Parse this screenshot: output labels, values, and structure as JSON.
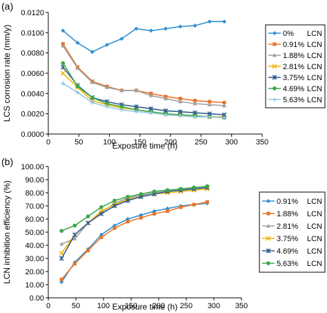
{
  "chart_data": [
    {
      "type": "line",
      "panel_label": "(a)",
      "xlabel": "Exposure time (h)",
      "ylabel": "LCS corrosion rate (mm/y)",
      "xlim": [
        0,
        350
      ],
      "ylim": [
        0,
        0.012
      ],
      "x_ticks": [
        "0",
        "50",
        "100",
        "150",
        "200",
        "250",
        "300",
        "350"
      ],
      "y_ticks": [
        "0.0000",
        "0.0020",
        "0.0040",
        "0.0060",
        "0.0080",
        "0.0100",
        "0.0120"
      ],
      "grid": false,
      "legend_position": "right",
      "series": [
        {
          "name": "0%",
          "suffix": "LCN",
          "color": "#2E8FD0",
          "marker": "diamond",
          "x": [
            24,
            48,
            72,
            96,
            120,
            144,
            168,
            192,
            216,
            240,
            264,
            288
          ],
          "values": [
            0.0102,
            0.009,
            0.0081,
            0.0088,
            0.0094,
            0.0104,
            0.0102,
            0.0104,
            0.0106,
            0.0107,
            0.0111,
            0.0111
          ]
        },
        {
          "name": "0.91%",
          "suffix": "LCN",
          "color": "#E8752A",
          "marker": "square",
          "x": [
            24,
            48,
            72,
            96,
            120,
            144,
            168,
            192,
            216,
            240,
            264,
            288
          ],
          "values": [
            0.0089,
            0.0066,
            0.0052,
            0.0047,
            0.0043,
            0.0043,
            0.004,
            0.0037,
            0.0035,
            0.0033,
            0.0032,
            0.0031
          ]
        },
        {
          "name": "1.88%",
          "suffix": "LCN",
          "color": "#A0A0A0",
          "marker": "triangle",
          "x": [
            24,
            48,
            72,
            96,
            120,
            144,
            168,
            192,
            216,
            240,
            264,
            288
          ],
          "values": [
            0.0087,
            0.0065,
            0.0051,
            0.0046,
            0.0043,
            0.0043,
            0.0038,
            0.0035,
            0.0032,
            0.003,
            0.0029,
            0.0028
          ]
        },
        {
          "name": "2.81%",
          "suffix": "LCN",
          "color": "#F4B400",
          "marker": "x",
          "x": [
            24,
            48,
            72,
            96,
            120,
            144,
            168,
            192,
            216,
            240,
            264,
            288
          ],
          "values": [
            0.006,
            0.0046,
            0.0033,
            0.0029,
            0.0026,
            0.0024,
            0.0022,
            0.002,
            0.0019,
            0.0018,
            0.0017,
            0.0017
          ]
        },
        {
          "name": "3.75%",
          "suffix": "LCN",
          "color": "#2F5C8F",
          "marker": "star",
          "x": [
            24,
            48,
            72,
            96,
            120,
            144,
            168,
            192,
            216,
            240,
            264,
            288
          ],
          "values": [
            0.0066,
            0.0048,
            0.0036,
            0.0032,
            0.0029,
            0.0027,
            0.0025,
            0.0023,
            0.0022,
            0.0021,
            0.002,
            0.0019
          ]
        },
        {
          "name": "4.69%",
          "suffix": "LCN",
          "color": "#3EA84A",
          "marker": "circle",
          "x": [
            24,
            48,
            72,
            96,
            120,
            144,
            168,
            192,
            216,
            240,
            264,
            288
          ],
          "values": [
            0.007,
            0.0047,
            0.0036,
            0.003,
            0.0027,
            0.0024,
            0.0022,
            0.002,
            0.0019,
            0.0018,
            0.0017,
            0.0016
          ]
        },
        {
          "name": "5.63%",
          "suffix": "LCN",
          "color": "#8FC9E8",
          "marker": "plus",
          "x": [
            24,
            48,
            72,
            96,
            120,
            144,
            168,
            192,
            216,
            240,
            264,
            288
          ],
          "values": [
            0.005,
            0.0041,
            0.0031,
            0.0027,
            0.0024,
            0.0022,
            0.0021,
            0.0019,
            0.0018,
            0.0017,
            0.0017,
            0.0016
          ]
        }
      ]
    },
    {
      "type": "line",
      "panel_label": "(b)",
      "xlabel": "Exposure time (h)",
      "ylabel": "LCN inhibition efficiency (%)",
      "xlim": [
        0,
        350
      ],
      "ylim": [
        0,
        100
      ],
      "x_ticks": [
        "0",
        "50",
        "100",
        "150",
        "200",
        "250",
        "300",
        "350"
      ],
      "y_ticks": [
        "0.00",
        "10.00",
        "20.00",
        "30.00",
        "40.00",
        "50.00",
        "60.00",
        "70.00",
        "80.00",
        "90.00",
        "100.00"
      ],
      "grid": false,
      "legend_position": "right",
      "series": [
        {
          "name": "0.91%",
          "suffix": "LCN",
          "color": "#2E8FD0",
          "marker": "diamond",
          "x": [
            24,
            48,
            72,
            96,
            120,
            144,
            168,
            192,
            216,
            240,
            264,
            288
          ],
          "values": [
            12,
            27,
            37,
            48,
            55,
            60,
            63,
            66,
            68,
            70,
            71,
            72
          ]
        },
        {
          "name": "1.88%",
          "suffix": "LCN",
          "color": "#E8752A",
          "marker": "square",
          "x": [
            24,
            48,
            72,
            96,
            120,
            144,
            168,
            192,
            216,
            240,
            264,
            288
          ],
          "values": [
            14,
            26,
            36,
            46,
            53,
            58,
            61,
            64,
            66,
            69,
            71,
            73
          ]
        },
        {
          "name": "2.81%",
          "suffix": "LCN",
          "color": "#A0A0A0",
          "marker": "triangle",
          "x": [
            24,
            48,
            72,
            96,
            120,
            144,
            168,
            192,
            216,
            240,
            264,
            288
          ],
          "values": [
            41,
            45,
            57,
            65,
            72,
            76,
            78,
            80,
            81,
            82,
            83,
            84
          ]
        },
        {
          "name": "3.75%",
          "suffix": "LCN",
          "color": "#F4B400",
          "marker": "x",
          "x": [
            24,
            48,
            72,
            96,
            120,
            144,
            168,
            192,
            216,
            240,
            264,
            288
          ],
          "values": [
            34,
            48,
            57,
            66,
            71,
            75,
            77,
            79,
            80,
            81,
            82,
            83
          ]
        },
        {
          "name": "4.69%",
          "suffix": "LCN",
          "color": "#2F5C8F",
          "marker": "star",
          "x": [
            24,
            48,
            72,
            96,
            120,
            144,
            168,
            192,
            216,
            240,
            264,
            288
          ],
          "values": [
            30,
            48,
            57,
            64,
            70,
            74,
            77,
            79,
            81,
            82,
            83,
            84
          ]
        },
        {
          "name": "5.63%",
          "suffix": "LCN",
          "color": "#3EA84A",
          "marker": "circle",
          "x": [
            24,
            48,
            72,
            96,
            120,
            144,
            168,
            192,
            216,
            240,
            264,
            288
          ],
          "values": [
            51,
            55,
            62,
            69,
            74,
            77,
            79,
            81,
            82,
            83,
            84,
            85
          ]
        }
      ]
    }
  ]
}
